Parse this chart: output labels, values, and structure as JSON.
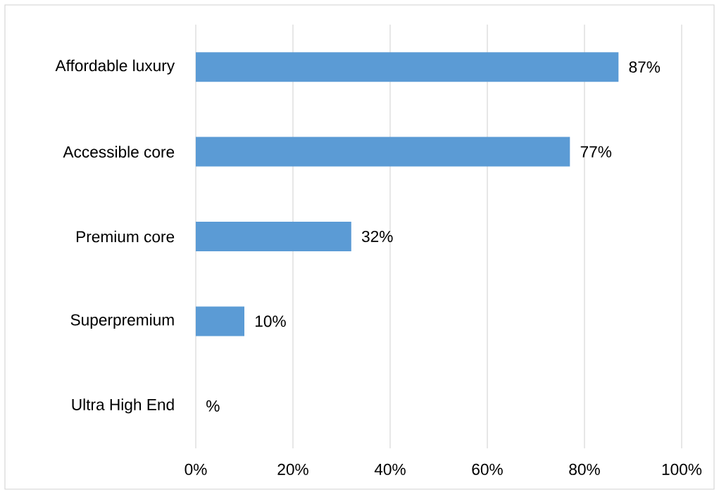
{
  "chart_data": {
    "type": "bar",
    "orientation": "horizontal",
    "categories": [
      "Affordable luxury",
      "Accessible core",
      "Premium core",
      "Superpremium",
      "Ultra High End"
    ],
    "values": [
      87,
      77,
      32,
      10,
      null
    ],
    "value_labels": [
      "87%",
      "77%",
      "32%",
      "10%",
      "%"
    ],
    "color": "#5b9bd5",
    "xlim": [
      0,
      100
    ],
    "xticks": [
      {
        "value": 0,
        "label": "0%"
      },
      {
        "value": 20,
        "label": "20%"
      },
      {
        "value": 40,
        "label": "40%"
      },
      {
        "value": 60,
        "label": "60%"
      },
      {
        "value": 80,
        "label": "80%"
      },
      {
        "value": 100,
        "label": "100%"
      }
    ],
    "grid": "x"
  }
}
